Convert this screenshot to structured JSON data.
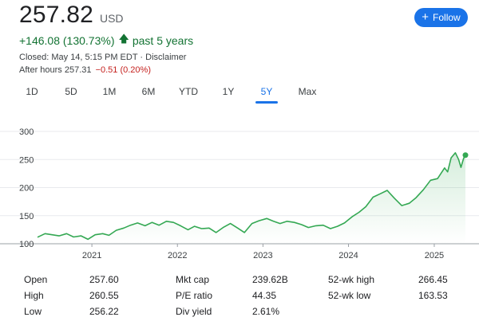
{
  "quote": {
    "price": "257.82",
    "currency": "USD",
    "change": "+146.08 (130.73%)",
    "period": "past 5 years",
    "closed_text": "Closed: May 14, 5:15 PM EDT · Disclaimer",
    "after_hours_label": "After hours 257.31",
    "after_hours_change": "−0.51 (0.20%)"
  },
  "follow_label": "Follow",
  "tabs": [
    "1D",
    "5D",
    "1M",
    "6M",
    "YTD",
    "1Y",
    "5Y",
    "Max"
  ],
  "active_tab": "5Y",
  "colors": {
    "line": "#34a853",
    "positive": "#137333",
    "negative": "#c5221f",
    "accent": "#1a73e8"
  },
  "chart_data": {
    "type": "area",
    "series": [
      {
        "values": [
          [
            "2020-05-14",
            111.7
          ],
          [
            "2020-06-15",
            118
          ],
          [
            "2020-07-15",
            116
          ],
          [
            "2020-08-14",
            114
          ],
          [
            "2020-09-15",
            118
          ],
          [
            "2020-10-15",
            112
          ],
          [
            "2020-11-16",
            114
          ],
          [
            "2020-12-15",
            108
          ],
          [
            "2021-01-15",
            116
          ],
          [
            "2021-02-16",
            118
          ],
          [
            "2021-03-15",
            115
          ],
          [
            "2021-04-15",
            124
          ],
          [
            "2021-05-17",
            128
          ],
          [
            "2021-06-15",
            133
          ],
          [
            "2021-07-15",
            137
          ],
          [
            "2021-08-16",
            132
          ],
          [
            "2021-09-15",
            138
          ],
          [
            "2021-10-15",
            133
          ],
          [
            "2021-11-15",
            140
          ],
          [
            "2021-12-15",
            138
          ],
          [
            "2022-01-14",
            132
          ],
          [
            "2022-02-15",
            125
          ],
          [
            "2022-03-15",
            131
          ],
          [
            "2022-04-14",
            127
          ],
          [
            "2022-05-16",
            128
          ],
          [
            "2022-06-15",
            120
          ],
          [
            "2022-07-15",
            129
          ],
          [
            "2022-08-15",
            136
          ],
          [
            "2022-09-15",
            128
          ],
          [
            "2022-10-14",
            120
          ],
          [
            "2022-11-15",
            136
          ],
          [
            "2022-12-15",
            141
          ],
          [
            "2023-01-17",
            145
          ],
          [
            "2023-02-15",
            140
          ],
          [
            "2023-03-15",
            136
          ],
          [
            "2023-04-14",
            140
          ],
          [
            "2023-05-15",
            138
          ],
          [
            "2023-06-15",
            134
          ],
          [
            "2023-07-14",
            129
          ],
          [
            "2023-08-15",
            132
          ],
          [
            "2023-09-15",
            133
          ],
          [
            "2023-10-16",
            127
          ],
          [
            "2023-11-15",
            131
          ],
          [
            "2023-12-15",
            137
          ],
          [
            "2024-01-16",
            148
          ],
          [
            "2024-02-15",
            156
          ],
          [
            "2024-03-15",
            166
          ],
          [
            "2024-04-15",
            183
          ],
          [
            "2024-05-15",
            189
          ],
          [
            "2024-06-14",
            195
          ],
          [
            "2024-07-15",
            181
          ],
          [
            "2024-08-15",
            168
          ],
          [
            "2024-09-16",
            172
          ],
          [
            "2024-10-15",
            182
          ],
          [
            "2024-11-15",
            196
          ],
          [
            "2024-12-16",
            213
          ],
          [
            "2025-01-15",
            216
          ],
          [
            "2025-02-14",
            235
          ],
          [
            "2025-02-27",
            228
          ],
          [
            "2025-03-14",
            253
          ],
          [
            "2025-04-01",
            262
          ],
          [
            "2025-04-15",
            250
          ],
          [
            "2025-04-25",
            236
          ],
          [
            "2025-05-06",
            252
          ],
          [
            "2025-05-14",
            257.82
          ]
        ]
      }
    ],
    "x_tick_labels": [
      "2021",
      "2022",
      "2023",
      "2024",
      "2025"
    ],
    "y_tick_labels": [
      "100",
      "150",
      "200",
      "250",
      "300"
    ],
    "ylim": [
      100,
      300
    ],
    "xlim": [
      "2020-05-14",
      "2025-05-14"
    ],
    "grid": "horizontal"
  },
  "stats": {
    "col1": [
      {
        "label": "Open",
        "value": "257.60"
      },
      {
        "label": "High",
        "value": "260.55"
      },
      {
        "label": "Low",
        "value": "256.22"
      }
    ],
    "col2": [
      {
        "label": "Mkt cap",
        "value": "239.62B"
      },
      {
        "label": "P/E ratio",
        "value": "44.35"
      },
      {
        "label": "Div yield",
        "value": "2.61%"
      }
    ],
    "col3": [
      {
        "label": "52-wk high",
        "value": "266.45"
      },
      {
        "label": "52-wk low",
        "value": "163.53"
      }
    ]
  }
}
